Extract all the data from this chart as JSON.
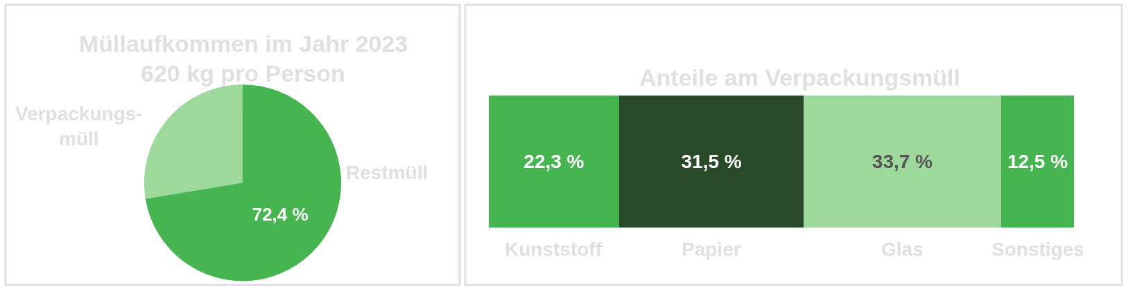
{
  "chart_data": [
    {
      "type": "pie",
      "title": "Müllaufkommen im Jahr 2023",
      "subtitle": "620 kg pro Person",
      "categories": [
        "Verpackungs-müll",
        "Restmüll"
      ],
      "values": [
        27.6,
        72.4
      ],
      "colors": [
        "#9dd89d",
        "#46b450"
      ],
      "value_labels": [
        null,
        "72,4 %"
      ]
    },
    {
      "type": "bar",
      "title": "Anteile am Verpackungsmüll",
      "orientation": "horizontal",
      "stacked": true,
      "categories": [
        null
      ],
      "series": [
        {
          "name": "Kunststoff",
          "color": "#46b450",
          "values": [
            22.3
          ],
          "value_labels": [
            "22,3 %"
          ]
        },
        {
          "name": "Papier",
          "color": "#294a29",
          "values": [
            31.5
          ],
          "value_labels": [
            "31,5 %"
          ]
        },
        {
          "name": "Glas",
          "color": "#9dd89d",
          "values": [
            33.7
          ],
          "value_labels": [
            "33,7 %"
          ]
        },
        {
          "name": "Sonstiges",
          "color": "#46b450",
          "values": [
            12.5
          ],
          "value_labels": [
            "12,5 %"
          ]
        }
      ]
    }
  ]
}
